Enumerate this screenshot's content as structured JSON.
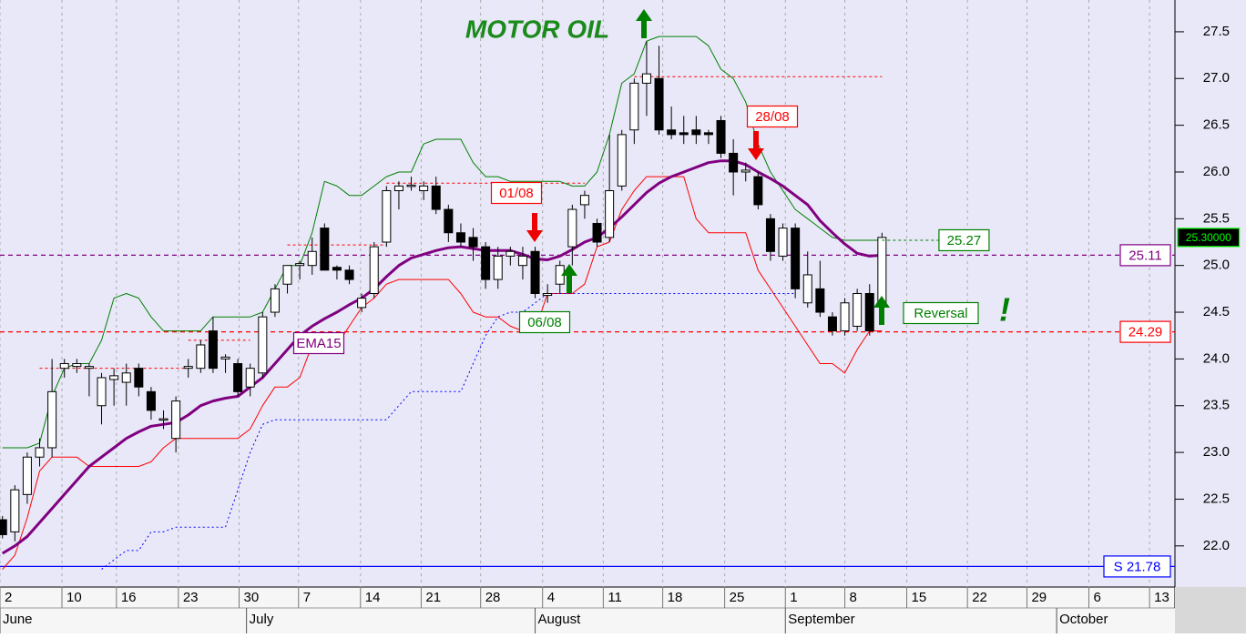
{
  "chart_data": {
    "type": "candlestick",
    "title": "MOTOR OIL",
    "x": [
      0,
      1,
      2,
      3,
      4,
      5,
      6,
      7,
      8,
      9,
      10,
      11,
      12,
      13,
      14,
      15,
      16,
      17,
      18,
      19,
      20,
      21,
      22,
      23,
      24,
      25,
      26,
      27,
      28,
      29,
      30,
      31,
      32,
      33,
      34,
      35,
      36,
      37,
      38,
      39,
      40,
      41,
      42,
      43,
      44,
      45,
      46,
      47,
      48,
      49,
      50,
      51,
      52,
      53,
      54,
      55,
      56,
      57,
      58,
      59,
      60,
      61,
      62,
      63,
      64,
      65,
      66,
      67,
      68,
      69,
      70,
      71
    ],
    "candles": {
      "open": [
        22.28,
        22.15,
        22.55,
        22.95,
        23.05,
        23.9,
        23.92,
        23.9,
        23.5,
        23.78,
        23.75,
        23.9,
        23.65,
        23.35,
        23.15,
        23.9,
        23.9,
        24.3,
        24.0,
        23.95,
        23.7,
        23.85,
        24.5,
        24.8,
        25.0,
        25.0,
        25.4,
        24.98,
        24.95,
        24.55,
        24.7,
        25.25,
        25.8,
        25.85,
        25.8,
        25.85,
        25.6,
        25.35,
        25.3,
        25.2,
        24.85,
        25.1,
        25.0,
        25.15,
        24.68,
        24.8,
        25.2,
        25.65,
        25.45,
        25.3,
        25.85,
        26.45,
        26.95,
        27.0,
        26.45,
        26.42,
        26.45,
        26.42,
        26.55,
        26.2,
        26.0,
        25.95,
        25.5,
        25.1,
        25.4,
        24.6,
        24.75,
        24.45,
        24.3,
        24.35,
        24.7,
        24.6
      ],
      "high": [
        22.32,
        22.65,
        23.0,
        23.15,
        24.0,
        24.0,
        24.0,
        23.95,
        23.85,
        23.9,
        23.95,
        23.95,
        23.7,
        23.45,
        23.6,
        24.0,
        24.2,
        24.45,
        24.05,
        24.0,
        23.95,
        24.5,
        24.8,
        25.0,
        25.05,
        25.3,
        25.45,
        25.0,
        25.0,
        24.7,
        25.25,
        25.85,
        25.9,
        25.95,
        25.9,
        25.95,
        25.65,
        25.45,
        25.4,
        25.25,
        25.2,
        25.2,
        25.2,
        25.2,
        24.8,
        25.05,
        25.65,
        25.8,
        25.5,
        26.4,
        26.45,
        27.0,
        27.4,
        27.35,
        26.7,
        26.6,
        26.6,
        26.45,
        26.6,
        26.35,
        26.1,
        26.0,
        25.55,
        25.45,
        25.45,
        25.15,
        25.05,
        24.5,
        24.65,
        24.75,
        24.8,
        25.35
      ],
      "low": [
        22.08,
        22.05,
        22.45,
        22.85,
        22.95,
        23.8,
        23.85,
        23.6,
        23.3,
        23.5,
        23.5,
        23.6,
        23.35,
        23.25,
        23.0,
        23.8,
        23.85,
        23.85,
        23.85,
        23.6,
        23.6,
        23.8,
        24.45,
        24.7,
        24.85,
        24.9,
        24.95,
        24.85,
        24.8,
        24.5,
        24.65,
        25.2,
        25.6,
        25.8,
        25.7,
        25.55,
        25.25,
        25.2,
        25.05,
        24.75,
        24.75,
        25.0,
        24.85,
        24.65,
        24.6,
        24.7,
        25.0,
        25.5,
        25.2,
        25.25,
        25.8,
        26.3,
        26.6,
        26.4,
        26.35,
        26.3,
        26.3,
        26.3,
        26.15,
        25.75,
        25.9,
        25.6,
        25.05,
        25.05,
        24.65,
        24.55,
        24.45,
        24.25,
        24.25,
        24.3,
        24.25,
        24.55
      ],
      "close": [
        22.12,
        22.6,
        22.95,
        23.05,
        23.65,
        23.95,
        23.95,
        23.92,
        23.8,
        23.82,
        23.85,
        23.7,
        23.45,
        23.36,
        23.55,
        23.92,
        24.15,
        23.9,
        24.02,
        23.65,
        23.9,
        24.45,
        24.75,
        25.0,
        25.02,
        25.15,
        24.95,
        24.95,
        24.85,
        24.65,
        25.2,
        25.8,
        25.85,
        25.86,
        25.85,
        25.6,
        25.35,
        25.25,
        25.2,
        24.85,
        25.1,
        25.15,
        25.1,
        24.7,
        24.7,
        25.0,
        25.6,
        25.75,
        25.25,
        25.8,
        26.4,
        26.95,
        27.05,
        26.45,
        26.4,
        26.4,
        26.4,
        26.4,
        26.2,
        26.0,
        26.02,
        25.65,
        25.15,
        25.4,
        24.75,
        24.9,
        24.5,
        24.3,
        24.6,
        24.7,
        24.3,
        25.3
      ]
    },
    "series": [
      {
        "name": "EMA15",
        "color": "#800080",
        "width": 3,
        "style": "solid",
        "values": [
          21.92,
          22.0,
          22.1,
          22.25,
          22.4,
          22.55,
          22.7,
          22.85,
          22.95,
          23.05,
          23.15,
          23.22,
          23.28,
          23.3,
          23.32,
          23.4,
          23.5,
          23.55,
          23.58,
          23.6,
          23.7,
          23.8,
          23.95,
          24.1,
          24.25,
          24.35,
          24.43,
          24.5,
          24.58,
          24.65,
          24.75,
          24.88,
          25.0,
          25.08,
          25.12,
          25.16,
          25.19,
          25.2,
          25.18,
          25.16,
          25.16,
          25.16,
          25.12,
          25.07,
          25.06,
          25.1,
          25.17,
          25.25,
          25.3,
          25.4,
          25.52,
          25.65,
          25.78,
          25.88,
          25.95,
          26.0,
          26.05,
          26.1,
          26.12,
          26.12,
          26.08,
          26.0,
          25.93,
          25.85,
          25.75,
          25.65,
          25.48,
          25.35,
          25.23,
          25.13,
          25.1,
          25.11
        ]
      },
      {
        "color": "#008000",
        "width": 1,
        "style": "solid",
        "values": [
          23.05,
          23.05,
          23.05,
          23.1,
          23.6,
          23.9,
          23.95,
          23.95,
          24.2,
          24.65,
          24.7,
          24.65,
          24.45,
          24.3,
          24.3,
          24.3,
          24.3,
          24.45,
          24.45,
          24.45,
          24.45,
          24.5,
          24.75,
          25.0,
          25.0,
          25.35,
          25.9,
          25.85,
          25.75,
          25.75,
          25.85,
          25.95,
          26.0,
          26.0,
          26.3,
          26.35,
          26.35,
          26.35,
          26.1,
          25.95,
          25.95,
          25.9,
          25.9,
          25.9,
          25.9,
          25.9,
          25.85,
          25.85,
          26.0,
          26.4,
          26.95,
          27.05,
          27.4,
          27.45,
          27.45,
          27.45,
          27.45,
          27.35,
          27.1,
          27.0,
          26.75,
          26.3,
          26.0,
          25.8,
          25.6,
          25.5,
          25.4,
          25.3,
          25.27,
          25.27,
          25.27,
          25.27
        ]
      },
      {
        "color": "#ff0000",
        "width": 1,
        "style": "solid",
        "values": [
          21.75,
          21.9,
          22.3,
          22.8,
          22.95,
          22.95,
          22.95,
          22.85,
          22.85,
          22.85,
          22.85,
          22.85,
          22.9,
          23.05,
          23.15,
          23.15,
          23.15,
          23.15,
          23.15,
          23.15,
          23.25,
          23.5,
          23.7,
          23.7,
          23.8,
          24.15,
          24.15,
          24.15,
          24.35,
          24.55,
          24.65,
          24.8,
          24.85,
          24.85,
          24.85,
          24.85,
          24.85,
          24.7,
          24.5,
          24.45,
          24.45,
          24.35,
          24.3,
          24.3,
          24.7,
          24.7,
          24.7,
          24.8,
          25.2,
          25.25,
          25.6,
          25.8,
          25.95,
          25.95,
          25.95,
          25.95,
          25.5,
          25.35,
          25.35,
          25.35,
          25.35,
          24.95,
          24.75,
          24.55,
          24.35,
          24.15,
          23.95,
          23.95,
          23.85,
          24.1,
          24.3,
          24.3
        ]
      },
      {
        "color": "#0000ff",
        "width": 1,
        "style": "dotted",
        "values": [
          null,
          null,
          null,
          null,
          null,
          null,
          null,
          null,
          21.75,
          21.85,
          21.95,
          21.95,
          22.15,
          22.15,
          22.2,
          22.2,
          22.2,
          22.2,
          22.2,
          22.6,
          23.0,
          23.3,
          23.35,
          23.35,
          23.35,
          23.35,
          23.35,
          23.35,
          23.35,
          23.35,
          23.35,
          23.35,
          23.5,
          23.65,
          23.65,
          23.65,
          23.65,
          23.65,
          23.95,
          24.25,
          24.45,
          24.5,
          24.5,
          24.6,
          24.7,
          24.7,
          24.7,
          24.7,
          24.7,
          24.7,
          24.7,
          24.7,
          24.7,
          24.7,
          24.7,
          24.7,
          24.7,
          24.7,
          24.7,
          24.7,
          24.7,
          24.7,
          24.7,
          24.7,
          24.7,
          null,
          null,
          null,
          null,
          null,
          null,
          null
        ]
      }
    ],
    "levels": [
      {
        "value": 23.9,
        "from": 3,
        "to": 15
      },
      {
        "value": 24.2,
        "from": 15,
        "to": 20
      },
      {
        "value": 25.22,
        "from": 23,
        "to": 31
      },
      {
        "value": 25.88,
        "from": 31,
        "to": 47
      },
      {
        "value": 27.02,
        "from": 51,
        "to": 71
      }
    ],
    "level_color": "#ff0000",
    "hlines": [
      {
        "value": 25.11,
        "label": "25.11",
        "color": "#800080",
        "style": "dashed"
      },
      {
        "value": 24.29,
        "label": "24.29",
        "color": "#ff0000",
        "style": "dashed"
      },
      {
        "value": 21.78,
        "label": "S 21.78",
        "color": "#0000ff",
        "style": "solid"
      }
    ],
    "target": {
      "value": 25.27,
      "label": "25.27",
      "from": 71,
      "to": 75.6,
      "color": "#008000"
    },
    "last_price": {
      "value": 25.3,
      "label": "25.30000"
    },
    "annotations": [
      {
        "text": "01/08",
        "color": "#ff0000"
      },
      {
        "text": "06/08",
        "color": "#008000"
      },
      {
        "text": "28/08",
        "color": "#ff0000"
      },
      {
        "text": "EMA15",
        "color": "#800080"
      },
      {
        "text": "Reversal",
        "color": "#008000"
      },
      {
        "text": "!",
        "color": "#008000"
      }
    ],
    "xlim": [
      -0.2,
      94.65
    ],
    "ylim": [
      21.56,
      27.84
    ],
    "yticks": [
      {
        "value": 22.0,
        "label": "22.0"
      },
      {
        "value": 22.5,
        "label": "22.5"
      },
      {
        "value": 23.0,
        "label": "23.0"
      },
      {
        "value": 23.5,
        "label": "23.5"
      },
      {
        "value": 24.0,
        "label": "24.0"
      },
      {
        "value": 24.5,
        "label": "24.5"
      },
      {
        "value": 25.0,
        "label": "25.0"
      },
      {
        "value": 25.5,
        "label": "25.5"
      },
      {
        "value": 26.0,
        "label": "26.0"
      },
      {
        "value": 26.5,
        "label": "26.5"
      },
      {
        "value": 27.0,
        "label": "27.0"
      },
      {
        "value": 27.5,
        "label": "27.5"
      }
    ],
    "xticks": [
      {
        "value": -0.2,
        "label": "2"
      },
      {
        "value": 4.8,
        "label": "10"
      },
      {
        "value": 9.2,
        "label": "16"
      },
      {
        "value": 14.2,
        "label": "23"
      },
      {
        "value": 19.1,
        "label": "30"
      },
      {
        "value": 23.9,
        "label": "7"
      },
      {
        "value": 28.9,
        "label": "14"
      },
      {
        "value": 33.8,
        "label": "21"
      },
      {
        "value": 38.6,
        "label": "28"
      },
      {
        "value": 43.6,
        "label": "4"
      },
      {
        "value": 48.5,
        "label": "11"
      },
      {
        "value": 53.3,
        "label": "18"
      },
      {
        "value": 58.3,
        "label": "25"
      },
      {
        "value": 63.2,
        "label": "1"
      },
      {
        "value": 68.0,
        "label": "8"
      },
      {
        "value": 73.0,
        "label": "15"
      },
      {
        "value": 77.9,
        "label": "22"
      },
      {
        "value": 82.7,
        "label": "29"
      },
      {
        "value": 87.7,
        "label": "6"
      },
      {
        "value": 92.6,
        "label": "13"
      }
    ],
    "months": [
      {
        "value": -0.2,
        "label": "June"
      },
      {
        "value": 19.7,
        "label": "July"
      },
      {
        "value": 43.0,
        "label": "August"
      },
      {
        "value": 63.2,
        "label": "September"
      },
      {
        "value": 85.1,
        "label": "October"
      }
    ],
    "grid": true
  }
}
